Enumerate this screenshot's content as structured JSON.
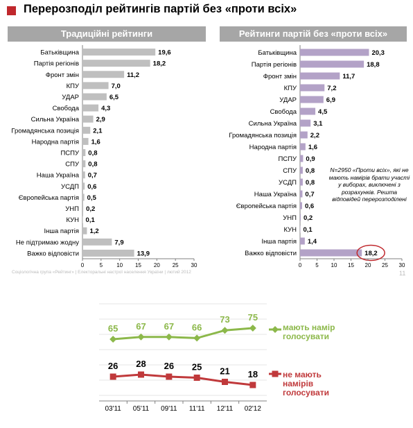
{
  "page": {
    "title": "Перерозподіл рейтингів партій без «проти всіх»",
    "footer": "Соціологічна група «Рейтинг» | Електоральні настрої населення України | лютий 2012",
    "page_number": "11",
    "note": "N=2950 «Проти всіх», які не мають намірів брати участі у виборах, виключені з розрахунків. Решта відповідей перерозподілені"
  },
  "colors": {
    "accent": "#c0282d",
    "bar_left": "#bfbfbf",
    "bar_right": "#b3a2c7",
    "header": "#a6a6a6",
    "green": "#8cb84a",
    "red": "#c0393b"
  },
  "chart_data": [
    {
      "type": "bar",
      "orientation": "horizontal",
      "title": "Традиційні рейтинги",
      "categories": [
        "Батьківщина",
        "Партія регіонів",
        "Фронт змін",
        "КПУ",
        "УДАР",
        "Свобода",
        "Сильна Україна",
        "Громадянська позиція",
        "Народна партія",
        "ПСПУ",
        "СПУ",
        "Наша Україна",
        "УСДП",
        "Європейська партія",
        "УНП",
        "КУН",
        "Інша партія",
        "Не підтримаю жодну",
        "Важко відповісти"
      ],
      "values": [
        19.6,
        18.2,
        11.2,
        7.0,
        6.5,
        4.3,
        2.9,
        2.1,
        1.6,
        0.8,
        0.8,
        0.7,
        0.6,
        0.5,
        0.2,
        0.1,
        1.2,
        7.9,
        13.9
      ],
      "value_labels": [
        "19,6",
        "18,2",
        "11,2",
        "7,0",
        "6,5",
        "4,3",
        "2,9",
        "2,1",
        "1,6",
        "0,8",
        "0,8",
        "0,7",
        "0,6",
        "0,5",
        "0,2",
        "0,1",
        "1,2",
        "7,9",
        "13,9"
      ],
      "xlim": [
        0,
        30
      ],
      "xticks": [
        0,
        5,
        10,
        15,
        20,
        25,
        30
      ]
    },
    {
      "type": "bar",
      "orientation": "horizontal",
      "title": "Рейтинги партій без «проти всіх»",
      "categories": [
        "Батьківщина",
        "Партія регіонів",
        "Фронт змін",
        "КПУ",
        "УДАР",
        "Свобода",
        "Сильна Україна",
        "Громадянська позиція",
        "Народна партія",
        "ПСПУ",
        "СПУ",
        "УСДП",
        "Наша Україна",
        "Європейська партія",
        "УНП",
        "КУН",
        "Інша партія",
        "Важко відповісти"
      ],
      "values": [
        20.3,
        18.8,
        11.7,
        7.2,
        6.9,
        4.5,
        3.1,
        2.2,
        1.6,
        0.9,
        0.8,
        0.8,
        0.7,
        0.6,
        0.2,
        0.1,
        1.4,
        18.2
      ],
      "value_labels": [
        "20,3",
        "18,8",
        "11,7",
        "7,2",
        "6,9",
        "4,5",
        "3,1",
        "2,2",
        "1,6",
        "0,9",
        "0,8",
        "0,8",
        "0,7",
        "0,6",
        "0,2",
        "0,1",
        "1,4",
        "18,2"
      ],
      "highlighted": "Важко відповісти",
      "xlim": [
        0,
        30
      ],
      "xticks": [
        0,
        5,
        10,
        15,
        20,
        25,
        30
      ]
    },
    {
      "type": "line",
      "x": [
        "03'11",
        "05'11",
        "09'11",
        "11'11",
        "12'11",
        "02'12"
      ],
      "series": [
        {
          "name": "мають намір голосувати",
          "values": [
            65,
            67,
            67,
            66,
            73,
            75
          ],
          "color": "#8cb84a"
        },
        {
          "name": "не мають намірів голосувати",
          "values": [
            26,
            28,
            26,
            25,
            21,
            18
          ],
          "color": "#c0393b"
        }
      ]
    }
  ]
}
